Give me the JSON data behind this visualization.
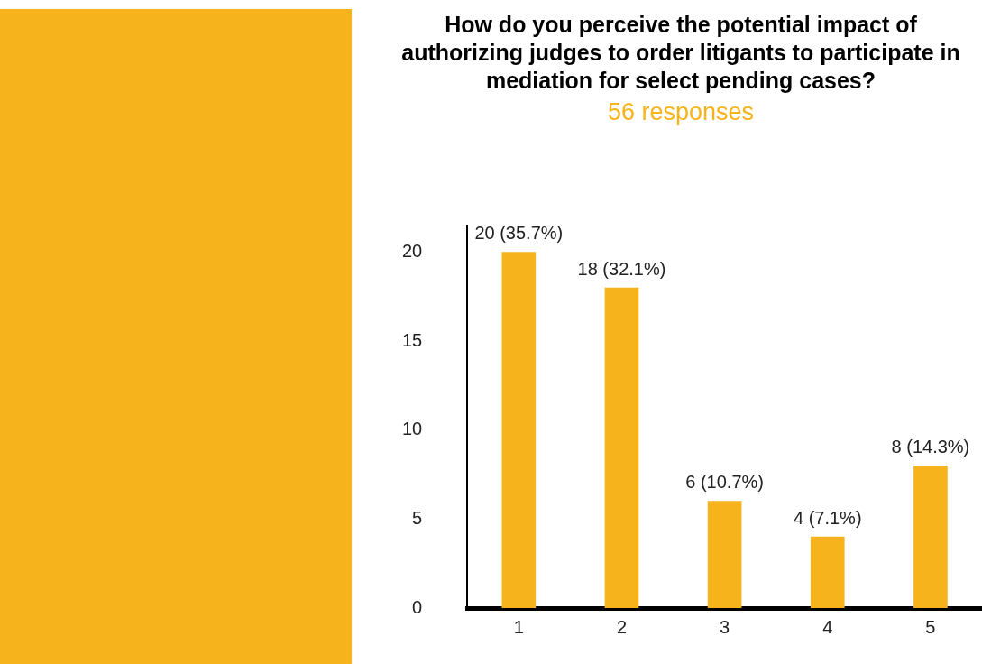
{
  "chart_data": {
    "type": "bar",
    "title": "How do you perceive the potential impact of authorizing judges to order litigants to participate in mediation for select pending cases?",
    "subtitle": "56 responses",
    "categories": [
      "1",
      "2",
      "3",
      "4",
      "5"
    ],
    "values": [
      20,
      18,
      6,
      4,
      8
    ],
    "color": "#f7b31b",
    "value_labels": [
      "20 (35.7%)",
      "18 (32.1%)",
      "6 (10.7%)",
      "4 (7.1%)",
      "8 (14.3%)"
    ],
    "ylim": [
      0,
      21.5
    ],
    "yticks": [
      0,
      5,
      10,
      15,
      20
    ],
    "grid": false,
    "legend": false
  }
}
